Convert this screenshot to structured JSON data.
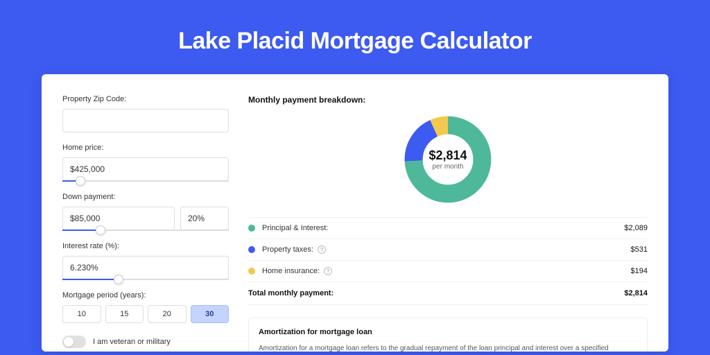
{
  "page": {
    "title": "Lake Placid Mortgage Calculator"
  },
  "colors": {
    "page_bg": "#3d5af1",
    "card_bg": "#ffffff",
    "accent": "#3d5af1",
    "principal": "#4eb89a",
    "taxes": "#3d5af1",
    "insurance": "#f2c94c",
    "period_active_bg": "#c5d3ff"
  },
  "form": {
    "zip": {
      "label": "Property Zip Code:",
      "value": ""
    },
    "home_price": {
      "label": "Home price:",
      "value": "$425,000",
      "slider_pct": 8
    },
    "down_payment": {
      "label": "Down payment:",
      "value": "$85,000",
      "pct": "20%",
      "slider_pct": 20
    },
    "interest_rate": {
      "label": "Interest rate (%):",
      "value": "6.230%",
      "slider_pct": 31
    },
    "period": {
      "label": "Mortgage period (years):",
      "options": [
        "10",
        "15",
        "20",
        "30"
      ],
      "active": "30"
    },
    "veteran": {
      "label": "I am veteran or military",
      "on": false
    }
  },
  "breakdown": {
    "title": "Monthly payment breakdown:",
    "center_amount": "$2,814",
    "center_sub": "per month",
    "donut": {
      "segments": [
        {
          "color": "#4eb89a",
          "fraction": 0.742
        },
        {
          "color": "#3d5af1",
          "fraction": 0.189
        },
        {
          "color": "#f2c94c",
          "fraction": 0.069
        }
      ],
      "thickness": 20
    },
    "items": [
      {
        "label": "Principal & Interest:",
        "value": "$2,089",
        "color": "#4eb89a",
        "info": false
      },
      {
        "label": "Property taxes:",
        "value": "$531",
        "color": "#3d5af1",
        "info": true
      },
      {
        "label": "Home insurance:",
        "value": "$194",
        "color": "#f2c94c",
        "info": true
      }
    ],
    "total": {
      "label": "Total monthly payment:",
      "value": "$2,814"
    }
  },
  "amortization": {
    "title": "Amortization for mortgage loan",
    "text": "Amortization for a mortgage loan refers to the gradual repayment of the loan principal and interest over a specified"
  }
}
